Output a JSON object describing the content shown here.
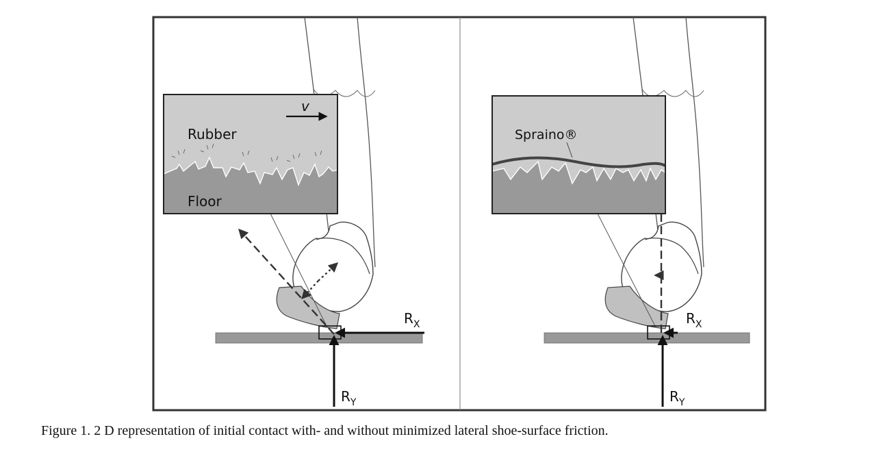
{
  "left_panel": {
    "inset_velocity_label": "v",
    "inset_top_label": "Rubber",
    "inset_bottom_label": "Floor",
    "force_x_label": "R",
    "force_x_sub": "X",
    "force_y_label": "R",
    "force_y_sub": "Y"
  },
  "right_panel": {
    "inset_label": "Spraino®",
    "force_x_label": "R",
    "force_x_sub": "X",
    "force_y_label": "R",
    "force_y_sub": "Y"
  },
  "caption": "Figure 1.  2 D representation of initial contact with- and without minimized lateral shoe-surface friction.",
  "colors": {
    "frame": "#333333",
    "rubber": "#cccccc",
    "floor": "#999999",
    "ground": "#999999",
    "hoof_gray": "#c0c0c0",
    "spraino_band": "#444444",
    "arrow": "#111111"
  }
}
